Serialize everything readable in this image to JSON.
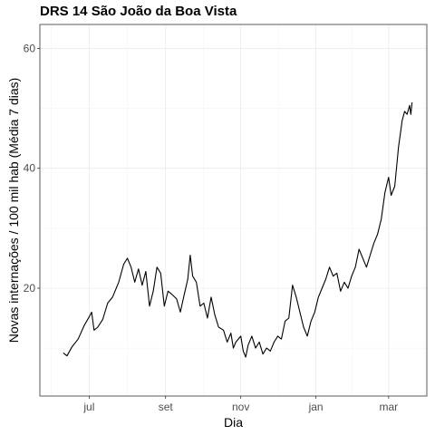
{
  "chart_data": {
    "type": "line",
    "title": "DRS 14 São João da Boa Vista",
    "xlabel": "Dia",
    "ylabel": "Novas internações / 100 mil hab (Média 7 dias)",
    "xlim": [
      "2020-05-22",
      "2021-04-01"
    ],
    "ylim": [
      2,
      64
    ],
    "y_ticks": [
      20,
      40,
      60
    ],
    "x_ticks": [
      {
        "date": "2020-07-01",
        "label": "jul"
      },
      {
        "date": "2020-09-01",
        "label": "set"
      },
      {
        "date": "2020-11-01",
        "label": "nov"
      },
      {
        "date": "2021-01-01",
        "label": "jan"
      },
      {
        "date": "2021-03-01",
        "label": "mar"
      }
    ],
    "grid": true,
    "series": [
      {
        "color": "#000000",
        "points": [
          [
            "2020-06-10",
            9.2
          ],
          [
            "2020-06-13",
            8.7
          ],
          [
            "2020-06-17",
            10.2
          ],
          [
            "2020-06-22",
            11.5
          ],
          [
            "2020-06-27",
            13.8
          ],
          [
            "2020-07-01",
            15.2
          ],
          [
            "2020-07-03",
            16.0
          ],
          [
            "2020-07-05",
            13.0
          ],
          [
            "2020-07-08",
            13.5
          ],
          [
            "2020-07-12",
            14.8
          ],
          [
            "2020-07-16",
            17.5
          ],
          [
            "2020-07-20",
            18.5
          ],
          [
            "2020-07-25",
            21.0
          ],
          [
            "2020-07-29",
            24.0
          ],
          [
            "2020-08-01",
            25.0
          ],
          [
            "2020-08-04",
            23.5
          ],
          [
            "2020-08-07",
            21.0
          ],
          [
            "2020-08-10",
            23.2
          ],
          [
            "2020-08-13",
            20.5
          ],
          [
            "2020-08-16",
            22.8
          ],
          [
            "2020-08-19",
            17.0
          ],
          [
            "2020-08-22",
            19.5
          ],
          [
            "2020-08-25",
            23.5
          ],
          [
            "2020-08-28",
            22.5
          ],
          [
            "2020-08-31",
            17.0
          ],
          [
            "2020-09-03",
            19.5
          ],
          [
            "2020-09-06",
            19.0
          ],
          [
            "2020-09-10",
            18.2
          ],
          [
            "2020-09-13",
            16.0
          ],
          [
            "2020-09-16",
            18.8
          ],
          [
            "2020-09-19",
            21.5
          ],
          [
            "2020-09-21",
            25.5
          ],
          [
            "2020-09-23",
            22.0
          ],
          [
            "2020-09-26",
            21.0
          ],
          [
            "2020-09-29",
            17.0
          ],
          [
            "2020-10-02",
            17.5
          ],
          [
            "2020-10-05",
            15.0
          ],
          [
            "2020-10-08",
            18.5
          ],
          [
            "2020-10-11",
            15.5
          ],
          [
            "2020-10-14",
            13.5
          ],
          [
            "2020-10-18",
            13.0
          ],
          [
            "2020-10-21",
            11.0
          ],
          [
            "2020-10-24",
            12.5
          ],
          [
            "2020-10-26",
            10.0
          ],
          [
            "2020-10-28",
            11.0
          ],
          [
            "2020-11-01",
            12.0
          ],
          [
            "2020-11-03",
            9.5
          ],
          [
            "2020-11-05",
            8.5
          ],
          [
            "2020-11-07",
            10.5
          ],
          [
            "2020-11-10",
            12.0
          ],
          [
            "2020-11-13",
            10.0
          ],
          [
            "2020-11-16",
            11.0
          ],
          [
            "2020-11-19",
            9.0
          ],
          [
            "2020-11-22",
            10.0
          ],
          [
            "2020-11-25",
            9.5
          ],
          [
            "2020-11-28",
            11.0
          ],
          [
            "2020-12-01",
            12.0
          ],
          [
            "2020-12-04",
            11.5
          ],
          [
            "2020-12-07",
            14.5
          ],
          [
            "2020-12-10",
            15.0
          ],
          [
            "2020-12-13",
            20.5
          ],
          [
            "2020-12-16",
            18.5
          ],
          [
            "2020-12-19",
            16.0
          ],
          [
            "2020-12-22",
            13.5
          ],
          [
            "2020-12-25",
            12.0
          ],
          [
            "2020-12-28",
            14.5
          ],
          [
            "2020-12-31",
            16.0
          ],
          [
            "2021-01-03",
            18.5
          ],
          [
            "2021-01-06",
            20.0
          ],
          [
            "2021-01-09",
            21.5
          ],
          [
            "2021-01-12",
            23.5
          ],
          [
            "2021-01-15",
            22.0
          ],
          [
            "2021-01-18",
            22.5
          ],
          [
            "2021-01-21",
            19.5
          ],
          [
            "2021-01-24",
            21.0
          ],
          [
            "2021-01-27",
            20.0
          ],
          [
            "2021-01-30",
            22.0
          ],
          [
            "2021-02-02",
            23.5
          ],
          [
            "2021-02-05",
            26.5
          ],
          [
            "2021-02-08",
            25.0
          ],
          [
            "2021-02-11",
            23.5
          ],
          [
            "2021-02-14",
            25.5
          ],
          [
            "2021-02-17",
            27.5
          ],
          [
            "2021-02-20",
            29.0
          ],
          [
            "2021-02-23",
            31.5
          ],
          [
            "2021-02-26",
            36.0
          ],
          [
            "2021-03-01",
            38.5
          ],
          [
            "2021-03-03",
            35.5
          ],
          [
            "2021-03-06",
            37.0
          ],
          [
            "2021-03-09",
            43.5
          ],
          [
            "2021-03-12",
            48.0
          ],
          [
            "2021-03-14",
            49.5
          ],
          [
            "2021-03-16",
            49.0
          ],
          [
            "2021-03-18",
            50.5
          ],
          [
            "2021-03-19",
            49.0
          ],
          [
            "2021-03-20",
            51.0
          ]
        ]
      }
    ]
  }
}
